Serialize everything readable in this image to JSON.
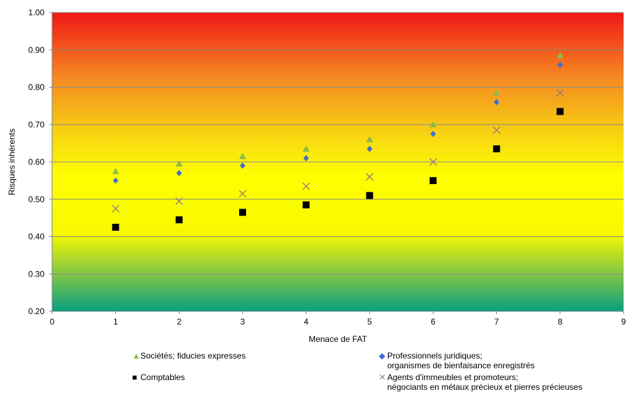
{
  "chart_data": {
    "type": "scatter",
    "xlabel": "Menace de FAT",
    "ylabel": "Risques inhérents",
    "xlim": [
      0,
      9
    ],
    "ylim": [
      0.2,
      1.0
    ],
    "x_ticks": [
      "0",
      "1",
      "2",
      "3",
      "4",
      "5",
      "6",
      "7",
      "8",
      "9"
    ],
    "y_ticks": [
      "0.20",
      "0.30",
      "0.40",
      "0.50",
      "0.60",
      "0.70",
      "0.80",
      "0.90",
      "1.00"
    ],
    "grid": true,
    "background": "gradient green-yellow-orange-red",
    "legend_position": "bottom",
    "series": [
      {
        "name": "Sociétés; fiducies expresses",
        "marker": "triangle",
        "color": "#8cbc4c",
        "x": [
          1,
          2,
          3,
          4,
          5,
          6,
          7,
          8
        ],
        "y": [
          0.575,
          0.595,
          0.615,
          0.635,
          0.66,
          0.7,
          0.785,
          0.885
        ]
      },
      {
        "name": "Professionnels juridiques; organismes de bienfaisance enregistrés",
        "name_line1": "Professionnels juridiques;",
        "name_line2": "organismes de bienfaisance enregistrés",
        "marker": "diamond",
        "color": "#3d6fd1",
        "x": [
          1,
          2,
          3,
          4,
          5,
          6,
          7,
          8
        ],
        "y": [
          0.55,
          0.57,
          0.59,
          0.61,
          0.635,
          0.675,
          0.76,
          0.86
        ]
      },
      {
        "name": "Comptables",
        "marker": "square",
        "color": "#000000",
        "x": [
          1,
          2,
          3,
          4,
          5,
          6,
          7,
          8
        ],
        "y": [
          0.425,
          0.445,
          0.465,
          0.485,
          0.51,
          0.55,
          0.635,
          0.735
        ]
      },
      {
        "name": "Agents d'immeubles et promoteurs; négociants en métaux précieux et pierres précieuses",
        "name_line1": "Agents d'immeubles et promoteurs;",
        "name_line2": "négociants en métaux précieux et pierres précieuses",
        "marker": "x",
        "color": "#8f7a8a",
        "x": [
          1,
          2,
          3,
          4,
          5,
          6,
          7,
          8
        ],
        "y": [
          0.475,
          0.495,
          0.515,
          0.535,
          0.56,
          0.6,
          0.685,
          0.785
        ]
      }
    ]
  }
}
